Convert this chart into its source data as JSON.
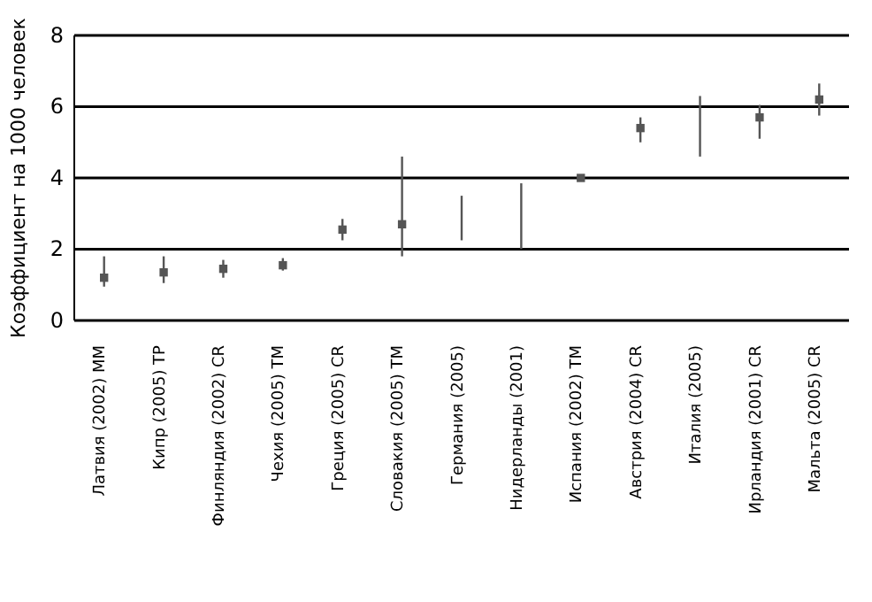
{
  "chart_data": {
    "type": "scatter",
    "ylabel": "Коэффициент на 1000 человек",
    "categories": [
      "Латвия (2002) ММ",
      "Кипр (2005) ТР",
      "Финляндия (2002) CR",
      "Чехия (2005) ТМ",
      "Греция (2005) CR",
      "Словакия  (2005) ТМ",
      "Германия (2005)",
      "Нидерланды (2001)",
      "Испания  (2002) ТМ",
      "Австрия  (2004) CR",
      "Италия  (2005)",
      "Ирландия (2001) CR",
      "Мальта  (2005) CR"
    ],
    "series": [
      {
        "color": "#555555",
        "values": [
          1.2,
          1.35,
          1.45,
          1.55,
          2.55,
          2.7,
          null,
          null,
          4.0,
          5.4,
          null,
          5.7,
          6.2
        ],
        "errors": [
          [
            0.95,
            1.8
          ],
          [
            1.05,
            1.8
          ],
          [
            1.2,
            1.7
          ],
          [
            1.4,
            1.75
          ],
          [
            2.25,
            2.85
          ],
          [
            1.8,
            4.6
          ],
          null,
          null,
          null,
          [
            5.0,
            5.7
          ],
          null,
          [
            5.1,
            6.05
          ],
          [
            5.75,
            6.65
          ]
        ]
      },
      {
        "type": "bar",
        "color": "#555555",
        "base": [
          null,
          null,
          null,
          null,
          null,
          null,
          2.25,
          2.0,
          null,
          null,
          4.6,
          null,
          null
        ],
        "values": [
          null,
          null,
          null,
          null,
          null,
          null,
          1.25,
          1.85,
          null,
          null,
          1.7,
          null,
          null
        ]
      }
    ],
    "marker": "square",
    "ylim": [
      0,
      8
    ],
    "yticks": [
      0,
      2,
      4,
      6,
      8
    ],
    "grid": "y"
  }
}
